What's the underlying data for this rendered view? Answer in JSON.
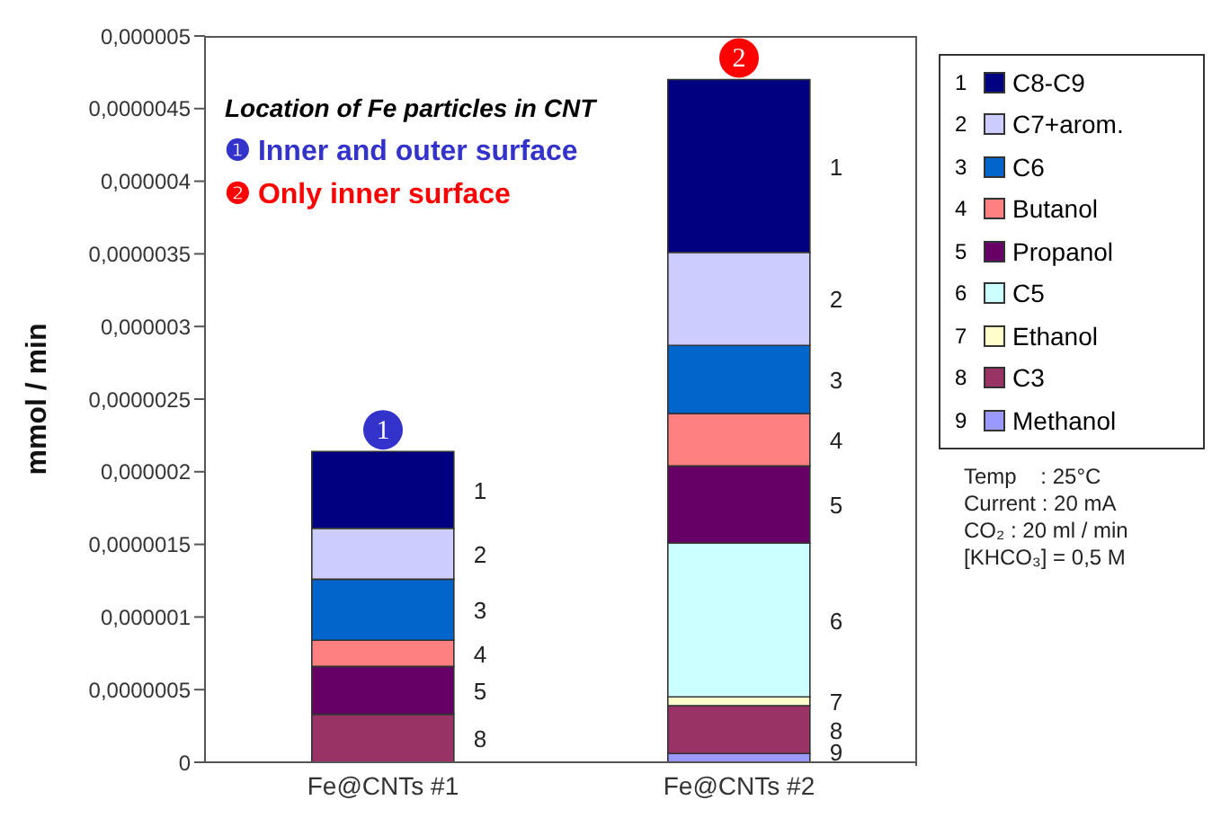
{
  "chart_data": {
    "type": "bar",
    "stacked": true,
    "ylabel": "mmol / min",
    "categories": [
      "Fe@CNTs #1",
      "Fe@CNTs #2"
    ],
    "series": [
      {
        "name": "Methanol",
        "color": "#9999ff",
        "values": [
          null,
          6e-08
        ]
      },
      {
        "name": "C3",
        "color": "#993366",
        "values": [
          3.3e-07,
          3.3e-07
        ]
      },
      {
        "name": "Ethanol",
        "color": "#ffffcc",
        "values": [
          null,
          6e-08
        ]
      },
      {
        "name": "C5",
        "color": "#ccffff",
        "values": [
          null,
          1.06e-06
        ]
      },
      {
        "name": "Propanol",
        "color": "#660066",
        "values": [
          3.3e-07,
          5.3e-07
        ]
      },
      {
        "name": "Butanol",
        "color": "#ff8080",
        "values": [
          1.8e-07,
          3.6e-07
        ]
      },
      {
        "name": "C6",
        "color": "#0066cc",
        "values": [
          4.2e-07,
          4.7e-07
        ]
      },
      {
        "name": "C7+arom.",
        "color": "#ccccff",
        "values": [
          3.5e-07,
          6.4e-07
        ]
      },
      {
        "name": "C8-C9",
        "color": "#000080",
        "values": [
          5.3e-07,
          1.19e-06
        ]
      }
    ],
    "ylim": [
      0,
      5e-06
    ],
    "yticks": [
      0,
      {
        "value": 5e-07,
        "label": "0,0000005"
      },
      {
        "value": 1e-06,
        "label": "0,000001"
      },
      {
        "value": 1.5e-06,
        "label": "0,0000015"
      },
      {
        "value": 2e-06,
        "label": "0,000002"
      },
      {
        "value": 2.5e-06,
        "label": "0,0000025"
      },
      {
        "value": 3e-06,
        "label": "0,000003"
      },
      {
        "value": 3.5e-06,
        "label": "0,0000035"
      },
      {
        "value": 4e-06,
        "label": "0,000004"
      },
      {
        "value": 4.5e-06,
        "label": "0,0000045"
      },
      {
        "value": 5e-06,
        "label": "0,000005"
      }
    ],
    "grid": false,
    "legend": "right",
    "annotations": [
      "Location of Fe particles in CNT",
      "❶ Inner and outer surface",
      "❷ Only inner surface",
      "Temp    : 25°C",
      "Current : 20 mA",
      "CO₂ : 20 ml / min",
      "[KHCO₃] = 0,5 M",
      "1",
      "2",
      "3",
      "4",
      "5",
      "6",
      "7",
      "8",
      "9",
      "1",
      "2",
      "3",
      "4",
      "5",
      "8",
      "1",
      "2",
      "3",
      "4",
      "5",
      "6",
      "7",
      "8",
      "9",
      {
        "text": "1",
        "x": "Fe@CNTs #1",
        "y": 2.14e-06
      },
      {
        "text": "2",
        "x": "Fe@CNTs #2",
        "y": 4.7e-06
      }
    ]
  }
}
